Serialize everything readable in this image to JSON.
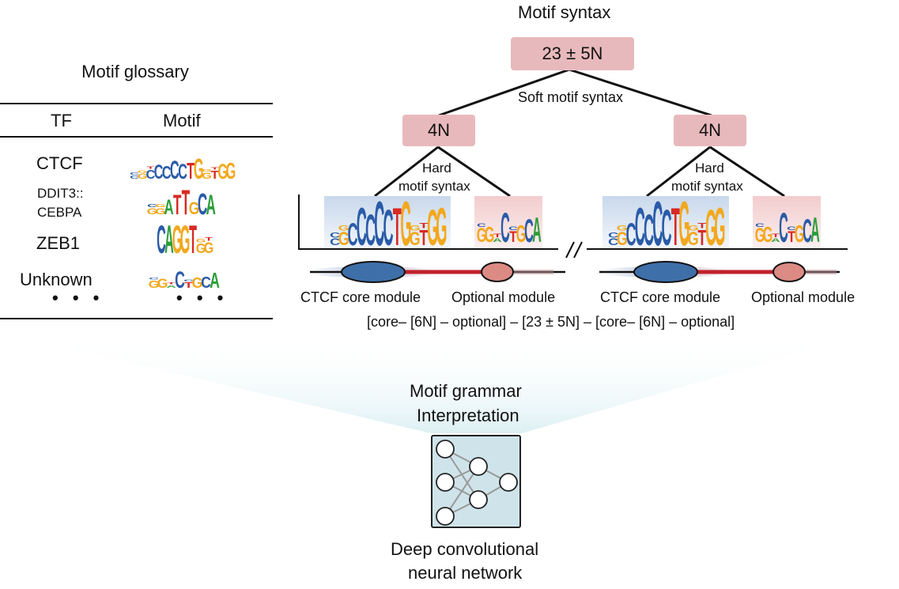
{
  "glossary": {
    "title": "Motif glossary",
    "col_tf": "TF",
    "col_motif": "Motif",
    "rows": [
      {
        "tf": "CTCF",
        "motif": "CGCCCCCTGGTGG"
      },
      {
        "tf": "DDIT3::\nCEBPA",
        "tf_line1": "DDIT3::",
        "tf_line2": "CEBPA",
        "motif": "GGATTGCA"
      },
      {
        "tf": "ZEB1",
        "motif": "CAGGTGG"
      },
      {
        "tf": "Unknown",
        "motif": "GGACTGCA"
      }
    ],
    "ellipsis_tf": "• • •",
    "ellipsis_motif": "• • •"
  },
  "syntax": {
    "title": "Motif syntax",
    "root_box": "23 ± 5N",
    "soft_label": "Soft motif syntax",
    "left_box": "4N",
    "right_box": "4N",
    "hard_label_line1": "Hard",
    "hard_label_line2": "motif syntax",
    "break_mark": "//",
    "module_labels": {
      "core_left": "CTCF core module",
      "optional_left": "Optional module",
      "core_right": "CTCF core module",
      "optional_right": "Optional module"
    },
    "formula": "[core– [6N] – optional] – [23 ± 5N] – [core– [6N] – optional]"
  },
  "cnn": {
    "grammar_line1": "Motif grammar",
    "grammar_line2": "Interpretation",
    "network_line1": "Deep convolutional",
    "network_line2": "neural network"
  },
  "colors": {
    "box_pink": "#e8b9bc",
    "core_blue": "#3f6fa8",
    "optional_salmon": "#dc8a84",
    "link_red": "#c0212b",
    "cnn_bg": "#cfe4ea",
    "base_A": "#2e9e3a",
    "base_C": "#2a5ba8",
    "base_G": "#f2a81d",
    "base_T": "#d62a25"
  }
}
